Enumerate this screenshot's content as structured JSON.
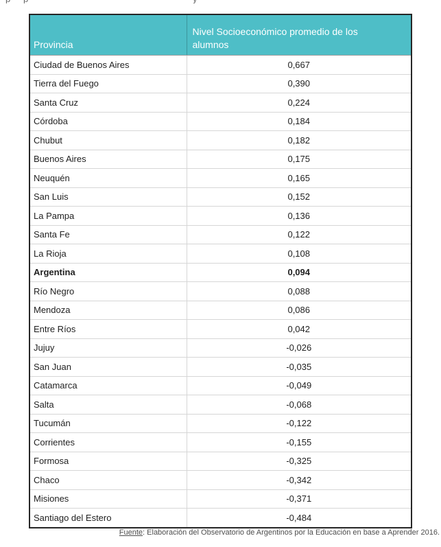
{
  "page": {
    "top_clipped_fragments": [
      "p",
      "p",
      "y"
    ]
  },
  "table": {
    "header": {
      "col1": "Provincia",
      "col2": "Nivel Socioeconómico promedio de los alumnos"
    },
    "rows": [
      {
        "province": "Ciudad de Buenos Aires",
        "value": "0,667",
        "bold": false
      },
      {
        "province": "Tierra del Fuego",
        "value": "0,390",
        "bold": false
      },
      {
        "province": "Santa Cruz",
        "value": "0,224",
        "bold": false
      },
      {
        "province": "Córdoba",
        "value": "0,184",
        "bold": false
      },
      {
        "province": "Chubut",
        "value": "0,182",
        "bold": false
      },
      {
        "province": "Buenos Aires",
        "value": "0,175",
        "bold": false
      },
      {
        "province": "Neuquén",
        "value": "0,165",
        "bold": false
      },
      {
        "province": "San Luis",
        "value": "0,152",
        "bold": false
      },
      {
        "province": "La Pampa",
        "value": "0,136",
        "bold": false
      },
      {
        "province": "Santa Fe",
        "value": "0,122",
        "bold": false
      },
      {
        "province": "La Rioja",
        "value": "0,108",
        "bold": false
      },
      {
        "province": "Argentina",
        "value": "0,094",
        "bold": true
      },
      {
        "province": "Río Negro",
        "value": "0,088",
        "bold": false
      },
      {
        "province": "Mendoza",
        "value": "0,086",
        "bold": false
      },
      {
        "province": "Entre Ríos",
        "value": "0,042",
        "bold": false
      },
      {
        "province": "Jujuy",
        "value": "-0,026",
        "bold": false
      },
      {
        "province": "San Juan",
        "value": "-0,035",
        "bold": false
      },
      {
        "province": "Catamarca",
        "value": "-0,049",
        "bold": false
      },
      {
        "province": "Salta",
        "value": "-0,068",
        "bold": false
      },
      {
        "province": "Tucumán",
        "value": "-0,122",
        "bold": false
      },
      {
        "province": "Corrientes",
        "value": "-0,155",
        "bold": false
      },
      {
        "province": "Formosa",
        "value": "-0,325",
        "bold": false
      },
      {
        "province": "Chaco",
        "value": "-0,342",
        "bold": false
      },
      {
        "province": "Misiones",
        "value": "-0,371",
        "bold": false
      },
      {
        "province": "Santiago del Estero",
        "value": "-0,484",
        "bold": false
      }
    ]
  },
  "footer": {
    "source_label": "Fuente",
    "source_text": ": Elaboración del Observatorio de Argentinos por la Educación en base a Aprender 2016."
  },
  "colors": {
    "header_bg": "#4EBEC7",
    "header_text": "#FFFFFF",
    "outer_border": "#262626",
    "inner_border": "#D6D6D6",
    "body_text": "#1F1F1F",
    "footer_text": "#4D4D4D"
  }
}
